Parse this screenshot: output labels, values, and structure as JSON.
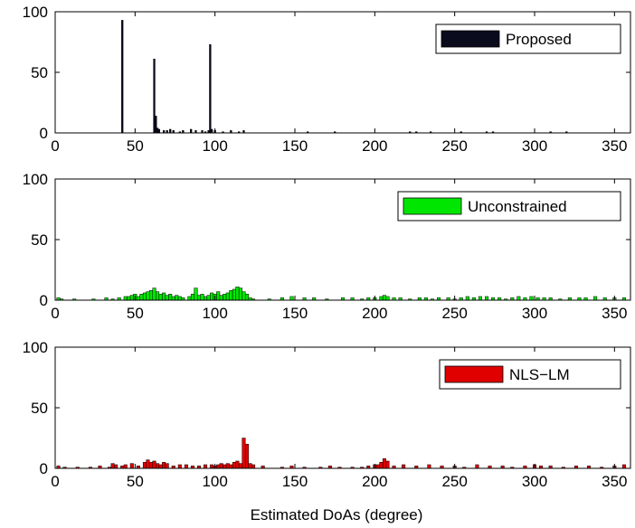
{
  "figure": {
    "xlabel": "Estimated DoAs (degree)"
  },
  "chart_data": [
    {
      "type": "bar",
      "legend": "Proposed",
      "legend_position": "top-right",
      "color": "#0b0b1e",
      "xlim": [
        0,
        360
      ],
      "ylim": [
        0,
        100
      ],
      "xticks": [
        0,
        50,
        100,
        150,
        200,
        250,
        300,
        350
      ],
      "yticks": [
        0,
        50,
        100
      ],
      "bin_width": 1,
      "x": [
        42,
        62,
        63,
        64,
        65,
        68,
        70,
        72,
        74,
        78,
        80,
        85,
        88,
        92,
        94,
        96,
        97,
        98,
        100,
        105,
        110,
        115,
        118,
        158,
        175,
        222,
        226,
        235,
        254,
        270,
        274,
        310,
        320
      ],
      "values": [
        93,
        61,
        14,
        4,
        3,
        2,
        2,
        3,
        2,
        1,
        2,
        3,
        2,
        2,
        1,
        2,
        73,
        3,
        2,
        1,
        2,
        1,
        2,
        1,
        1,
        1,
        1,
        1,
        1,
        1,
        1,
        1,
        1
      ]
    },
    {
      "type": "bar",
      "legend": "Unconstrained",
      "legend_position": "top-right",
      "color": "#00e600",
      "xlim": [
        0,
        360
      ],
      "ylim": [
        0,
        100
      ],
      "xticks": [
        0,
        50,
        100,
        150,
        200,
        250,
        300,
        350
      ],
      "yticks": [
        0,
        50,
        100
      ],
      "bin_width": 2,
      "x": [
        2,
        4,
        12,
        24,
        32,
        36,
        40,
        44,
        46,
        48,
        50,
        52,
        54,
        56,
        58,
        60,
        62,
        64,
        66,
        68,
        70,
        72,
        74,
        76,
        78,
        80,
        84,
        86,
        88,
        90,
        92,
        94,
        96,
        98,
        100,
        102,
        104,
        106,
        108,
        110,
        112,
        114,
        116,
        118,
        120,
        122,
        124,
        134,
        142,
        148,
        156,
        162,
        170,
        180,
        186,
        192,
        196,
        200,
        204,
        206,
        208,
        212,
        216,
        222,
        228,
        232,
        236,
        240,
        246,
        250,
        254,
        258,
        262,
        266,
        270,
        274,
        278,
        282,
        286,
        290,
        294,
        298,
        302,
        306,
        310,
        316,
        322,
        328,
        332,
        338,
        344,
        350,
        356
      ],
      "values": [
        2,
        1,
        1,
        1,
        2,
        1,
        2,
        3,
        3,
        4,
        5,
        3,
        5,
        6,
        7,
        8,
        10,
        7,
        5,
        6,
        4,
        5,
        3,
        4,
        3,
        2,
        3,
        5,
        10,
        4,
        5,
        3,
        4,
        6,
        5,
        7,
        4,
        5,
        6,
        8,
        9,
        11,
        10,
        7,
        5,
        2,
        1,
        1,
        2,
        3,
        2,
        2,
        1,
        2,
        2,
        1,
        2,
        2,
        3,
        4,
        3,
        2,
        2,
        1,
        2,
        2,
        1,
        2,
        2,
        1,
        2,
        3,
        2,
        3,
        3,
        2,
        2,
        1,
        2,
        3,
        2,
        3,
        2,
        2,
        2,
        1,
        2,
        2,
        2,
        3,
        2,
        2,
        2
      ]
    },
    {
      "type": "bar",
      "legend": "NLS−LM",
      "legend_position": "top-right",
      "color": "#e00000",
      "xlim": [
        0,
        360
      ],
      "ylim": [
        0,
        100
      ],
      "xticks": [
        0,
        50,
        100,
        150,
        200,
        250,
        300,
        350
      ],
      "yticks": [
        0,
        50,
        100
      ],
      "bin_width": 2,
      "x": [
        2,
        6,
        14,
        22,
        28,
        34,
        36,
        38,
        42,
        44,
        48,
        52,
        56,
        58,
        60,
        62,
        64,
        66,
        68,
        70,
        74,
        78,
        82,
        86,
        90,
        94,
        98,
        100,
        102,
        104,
        106,
        108,
        110,
        112,
        114,
        116,
        118,
        120,
        122,
        124,
        130,
        142,
        148,
        156,
        166,
        172,
        178,
        186,
        192,
        196,
        200,
        202,
        204,
        206,
        208,
        212,
        218,
        226,
        234,
        242,
        250,
        256,
        264,
        272,
        280,
        286,
        294,
        300,
        304,
        310,
        318,
        326,
        334,
        342,
        350,
        356
      ],
      "values": [
        2,
        1,
        1,
        1,
        2,
        1,
        4,
        3,
        2,
        3,
        4,
        2,
        5,
        7,
        5,
        6,
        4,
        3,
        5,
        4,
        2,
        3,
        3,
        2,
        2,
        3,
        3,
        2,
        3,
        4,
        3,
        4,
        3,
        5,
        6,
        4,
        25,
        20,
        4,
        3,
        2,
        1,
        2,
        1,
        1,
        2,
        1,
        1,
        1,
        2,
        3,
        3,
        5,
        8,
        6,
        2,
        3,
        2,
        3,
        2,
        2,
        1,
        3,
        2,
        2,
        1,
        2,
        3,
        2,
        2,
        1,
        2,
        2,
        1,
        2,
        3
      ]
    }
  ]
}
